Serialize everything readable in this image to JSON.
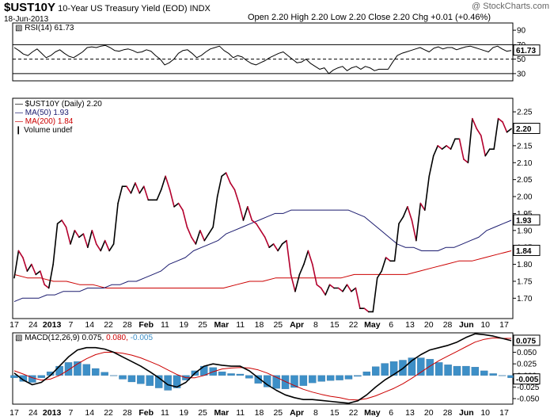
{
  "header": {
    "symbol": "$UST10Y",
    "description": "10-Year US Treasury Yield (EOD)",
    "exchange": "INDX",
    "date": "18-Jun-2013",
    "watermark": "@ StockCharts.com",
    "ohlc": "Open 2.20  High 2.20  Low 2.20  Close 2.20  Chg +0.01 (+0.46%)"
  },
  "chart_data": [
    {
      "type": "line",
      "panel": "rsi",
      "title": "RSI(14) 61.73",
      "current_label": "61.73",
      "ylim": [
        20,
        100
      ],
      "yticks": [
        30,
        50,
        70,
        90
      ],
      "reference_lines": [
        70,
        50,
        30
      ],
      "series": [
        {
          "name": "RSI(14)",
          "color": "#000000",
          "values": [
            66,
            62,
            57,
            55,
            60,
            64,
            58,
            52,
            55,
            60,
            63,
            58,
            54,
            52,
            56,
            60,
            66,
            67,
            66,
            68,
            69,
            66,
            62,
            61,
            63,
            64,
            62,
            59,
            60,
            63,
            61,
            55,
            50,
            42,
            45,
            50,
            58,
            62,
            63,
            58,
            52,
            55,
            60,
            64,
            66,
            68,
            62,
            58,
            52,
            55,
            53,
            48,
            44,
            42,
            45,
            48,
            52,
            55,
            58,
            60,
            55,
            50,
            45,
            46,
            50,
            44,
            40,
            36,
            38,
            30,
            35,
            38,
            40,
            34,
            38,
            40,
            36,
            40,
            38,
            34,
            36,
            36,
            36,
            46,
            55,
            58,
            60,
            62,
            64,
            66,
            63,
            60,
            65,
            67,
            64,
            66,
            66,
            63,
            65,
            67,
            68,
            66,
            64,
            62,
            60,
            66,
            68,
            64,
            61,
            62
          ]
        }
      ]
    },
    {
      "type": "line",
      "panel": "price",
      "title": "$UST10Y (Daily) 2.20",
      "ylim": [
        1.64,
        2.29
      ],
      "yticks": [
        1.7,
        1.75,
        1.8,
        1.85,
        1.9,
        1.95,
        2.0,
        2.05,
        2.1,
        2.15,
        2.2,
        2.25
      ],
      "legend": [
        "$UST10Y (Daily) 2.20",
        "MA(50) 1.93",
        "MA(200) 1.84",
        "Volume undef"
      ],
      "x_labels": [
        "17",
        "24",
        "2013",
        "7",
        "14",
        "22",
        "28",
        "Feb",
        "11",
        "19",
        "25",
        "Mar",
        "11",
        "18",
        "25",
        "Apr",
        "8",
        "15",
        "22",
        "May",
        "6",
        "13",
        "20",
        "28",
        "Jun",
        "10",
        "17"
      ],
      "series": [
        {
          "name": "$UST10Y",
          "color": "#000000",
          "current_label": "2.20",
          "values": [
            1.76,
            1.84,
            1.82,
            1.78,
            1.8,
            1.77,
            1.78,
            1.74,
            1.73,
            1.8,
            1.92,
            1.93,
            1.91,
            1.86,
            1.9,
            1.88,
            1.89,
            1.85,
            1.9,
            1.86,
            1.84,
            1.87,
            1.84,
            1.86,
            1.98,
            2.03,
            2.03,
            2.01,
            2.04,
            2.01,
            2.03,
            1.99,
            1.99,
            1.99,
            2.02,
            2.06,
            2.02,
            1.97,
            1.98,
            1.96,
            1.91,
            1.88,
            1.86,
            1.9,
            1.87,
            1.89,
            1.91,
            2.0,
            2.06,
            2.07,
            2.04,
            2.02,
            1.98,
            1.93,
            1.97,
            1.93,
            1.92,
            1.9,
            1.88,
            1.85,
            1.86,
            1.84,
            1.86,
            1.87,
            1.77,
            1.72,
            1.77,
            1.8,
            1.84,
            1.8,
            1.74,
            1.73,
            1.71,
            1.74,
            1.73,
            1.73,
            1.72,
            1.74,
            1.72,
            1.73,
            1.67,
            1.67,
            1.66,
            1.66,
            1.76,
            1.78,
            1.82,
            1.81,
            1.81,
            1.92,
            1.94,
            1.97,
            1.93,
            1.87,
            1.98,
            1.96,
            2.06,
            2.12,
            2.15,
            2.14,
            2.15,
            2.14,
            2.17,
            2.17,
            2.11,
            2.1,
            2.23,
            2.2,
            2.18,
            2.12,
            2.14,
            2.14,
            2.23,
            2.22,
            2.19,
            2.2
          ]
        },
        {
          "name": "MA(50)",
          "color": "#1a1a6e",
          "values": [
            1.69,
            1.7,
            1.7,
            1.7,
            1.71,
            1.71,
            1.72,
            1.72,
            1.72,
            1.73,
            1.73,
            1.73,
            1.74,
            1.74,
            1.75,
            1.75,
            1.76,
            1.77,
            1.78,
            1.8,
            1.81,
            1.82,
            1.84,
            1.85,
            1.86,
            1.87,
            1.89,
            1.9,
            1.91,
            1.92,
            1.93,
            1.94,
            1.95,
            1.95,
            1.96,
            1.96,
            1.96,
            1.96,
            1.96,
            1.96,
            1.96,
            1.96,
            1.95,
            1.94,
            1.92,
            1.9,
            1.88,
            1.86,
            1.85,
            1.85,
            1.84,
            1.84,
            1.84,
            1.85,
            1.85,
            1.86,
            1.87,
            1.88,
            1.9,
            1.91,
            1.92,
            1.93
          ]
        },
        {
          "name": "MA(200)",
          "color": "#cc0000",
          "values": [
            1.77,
            1.76,
            1.76,
            1.75,
            1.75,
            1.74,
            1.74,
            1.73,
            1.73,
            1.73,
            1.73,
            1.73,
            1.73,
            1.73,
            1.73,
            1.73,
            1.73,
            1.74,
            1.75,
            1.75,
            1.76,
            1.76,
            1.76,
            1.76,
            1.76,
            1.76,
            1.77,
            1.77,
            1.77,
            1.77,
            1.77,
            1.78,
            1.79,
            1.8,
            1.81,
            1.81,
            1.82,
            1.83,
            1.84
          ]
        }
      ]
    },
    {
      "type": "bar",
      "panel": "macd",
      "title": "MACD(12,26,9) 0.075, 0.080, -0.005",
      "title_parts": {
        "label": "MACD(12,26,9)",
        "macd": "0.075",
        "signal": "0.080",
        "hist": "-0.005"
      },
      "ylim": [
        -0.062,
        0.092
      ],
      "yticks": [
        -0.05,
        -0.025,
        0.0,
        0.025,
        0.05,
        0.075
      ],
      "x_labels": [
        "17",
        "24",
        "2013",
        "7",
        "14",
        "22",
        "28",
        "Feb",
        "11",
        "19",
        "25",
        "Mar",
        "11",
        "18",
        "25",
        "Apr",
        "8",
        "15",
        "22",
        "May",
        "6",
        "13",
        "20",
        "28",
        "Jun",
        "10",
        "17"
      ],
      "series": [
        {
          "name": "MACD",
          "color": "#000000",
          "current_label": "0.075",
          "values": [
            0.005,
            -0.01,
            -0.02,
            -0.015,
            0.0,
            0.02,
            0.04,
            0.055,
            0.06,
            0.06,
            0.057,
            0.05,
            0.04,
            0.03,
            0.02,
            0.008,
            -0.005,
            -0.02,
            -0.025,
            -0.015,
            0.005,
            0.02,
            0.025,
            0.022,
            0.02,
            0.02,
            0.01,
            -0.005,
            -0.02,
            -0.032,
            -0.042,
            -0.048,
            -0.052,
            -0.052,
            -0.054,
            -0.056,
            -0.058,
            -0.06,
            -0.055,
            -0.042,
            -0.025,
            -0.01,
            0.002,
            0.015,
            0.032,
            0.045,
            0.055,
            0.06,
            0.065,
            0.072,
            0.082,
            0.09,
            0.088,
            0.085,
            0.08,
            0.075
          ]
        },
        {
          "name": "Signal",
          "color": "#cc0000",
          "values": [
            0.01,
            0.003,
            -0.005,
            -0.01,
            -0.008,
            0.0,
            0.012,
            0.025,
            0.036,
            0.045,
            0.05,
            0.05,
            0.048,
            0.044,
            0.038,
            0.03,
            0.022,
            0.012,
            0.002,
            -0.005,
            -0.005,
            0.0,
            0.008,
            0.014,
            0.016,
            0.017,
            0.016,
            0.012,
            0.005,
            -0.004,
            -0.013,
            -0.022,
            -0.03,
            -0.036,
            -0.041,
            -0.045,
            -0.048,
            -0.052,
            -0.053,
            -0.05,
            -0.044,
            -0.036,
            -0.028,
            -0.018,
            -0.006,
            0.007,
            0.02,
            0.032,
            0.042,
            0.052,
            0.062,
            0.072,
            0.078,
            0.081,
            0.08,
            0.08
          ]
        },
        {
          "name": "Histogram",
          "color": "#3d8fc7",
          "values": [
            -0.005,
            -0.013,
            -0.015,
            -0.005,
            0.008,
            0.02,
            0.028,
            0.03,
            0.024,
            0.015,
            0.007,
            0.0,
            -0.008,
            -0.014,
            -0.018,
            -0.022,
            -0.027,
            -0.032,
            -0.027,
            -0.01,
            0.01,
            0.02,
            0.017,
            0.008,
            0.004,
            0.003,
            -0.006,
            -0.017,
            -0.025,
            -0.028,
            -0.029,
            -0.026,
            -0.022,
            -0.016,
            -0.013,
            -0.011,
            -0.01,
            -0.008,
            -0.002,
            0.008,
            0.019,
            0.026,
            0.03,
            0.033,
            0.038,
            0.038,
            0.035,
            0.028,
            0.023,
            0.02,
            0.02,
            0.018,
            0.01,
            0.004,
            0.0,
            -0.005
          ]
        }
      ]
    }
  ]
}
